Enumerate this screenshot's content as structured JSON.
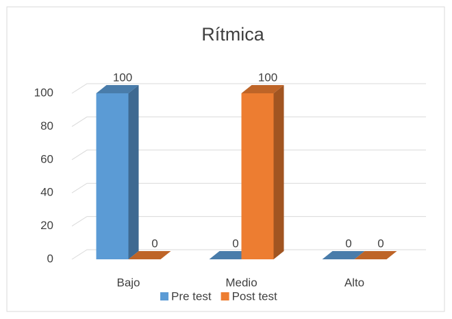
{
  "chart_data": {
    "type": "bar3d",
    "title": "Rítmica",
    "categories": [
      "Bajo",
      "Medio",
      "Alto"
    ],
    "series": [
      {
        "name": "Pre test",
        "color": "#5b9bd5",
        "values": [
          100,
          0,
          0
        ]
      },
      {
        "name": "Post test",
        "color": "#ed7d31",
        "values": [
          0,
          100,
          0
        ]
      }
    ],
    "ylim": [
      0,
      100
    ],
    "yticks": [
      0,
      20,
      40,
      60,
      80,
      100
    ],
    "grid": true,
    "legend": "bottom"
  }
}
